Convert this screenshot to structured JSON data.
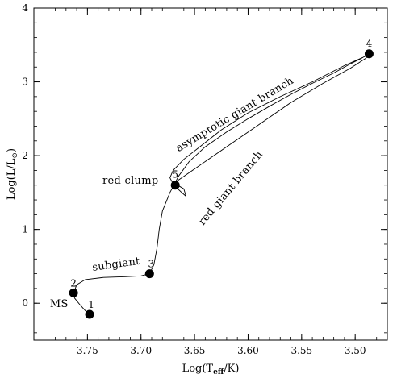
{
  "chart_data": {
    "type": "line",
    "title": "",
    "xlabel": "Log(T_eff/K)",
    "ylabel": "Log(L/L_sun)",
    "xlim": [
      3.8,
      3.47
    ],
    "ylim": [
      -0.5,
      4.0
    ],
    "x_reversed": true,
    "grid": false,
    "legend": "none",
    "xticks": [
      3.75,
      3.7,
      3.65,
      3.6,
      3.55,
      3.5
    ],
    "xtick_labels": [
      "3.75",
      "3.70",
      "3.65",
      "3.60",
      "3.55",
      "3.50"
    ],
    "yticks": [
      0,
      1,
      2,
      3,
      4
    ],
    "ytick_labels": [
      "0",
      "1",
      "2",
      "3",
      "4"
    ],
    "series": [
      {
        "x": [
          3.748,
          3.752,
          3.757,
          3.762,
          3.763,
          3.76,
          3.752,
          3.735,
          3.715,
          3.7,
          3.692,
          3.688,
          3.685,
          3.683,
          3.68,
          3.673,
          3.665,
          3.655,
          3.64,
          3.62,
          3.6,
          3.58,
          3.56,
          3.54,
          3.52,
          3.505,
          3.494,
          3.487,
          3.49,
          3.51,
          3.54,
          3.57,
          3.6,
          3.625,
          3.645,
          3.66,
          3.67,
          3.673,
          3.67,
          3.667,
          3.662,
          3.658,
          3.66,
          3.666,
          3.668,
          3.65,
          3.62,
          3.59,
          3.56,
          3.53,
          3.505,
          3.49,
          3.487
        ],
        "y": [
          -0.15,
          -0.1,
          -0.02,
          0.07,
          0.14,
          0.25,
          0.32,
          0.35,
          0.36,
          0.37,
          0.4,
          0.52,
          0.75,
          1.0,
          1.25,
          1.5,
          1.72,
          1.92,
          2.12,
          2.32,
          2.5,
          2.67,
          2.83,
          2.98,
          3.12,
          3.24,
          3.32,
          3.38,
          3.35,
          3.22,
          3.0,
          2.8,
          2.58,
          2.35,
          2.12,
          1.95,
          1.8,
          1.7,
          1.62,
          1.57,
          1.5,
          1.45,
          1.55,
          1.6,
          1.64,
          1.82,
          2.12,
          2.42,
          2.72,
          2.98,
          3.18,
          3.32,
          3.38
        ]
      }
    ],
    "points": [
      {
        "label": "1",
        "x": 3.748,
        "y": -0.15
      },
      {
        "label": "2",
        "x": 3.763,
        "y": 0.14
      },
      {
        "label": "3",
        "x": 3.692,
        "y": 0.4
      },
      {
        "label": "4",
        "x": 3.487,
        "y": 3.38
      },
      {
        "label": "5",
        "x": 3.668,
        "y": 1.6
      }
    ],
    "annotations": [
      {
        "text": "MS",
        "x": 3.785,
        "y": -0.05,
        "angle": 0
      },
      {
        "text": "subgiant",
        "x": 3.745,
        "y": 0.44,
        "angle": -8
      },
      {
        "text": "red clump",
        "x": 3.736,
        "y": 1.62,
        "angle": 0
      },
      {
        "text": "asymptotic giant branch",
        "x": 3.665,
        "y": 2.05,
        "angle": -31
      },
      {
        "text": "red giant branch",
        "x": 3.642,
        "y": 1.05,
        "angle": -50
      }
    ]
  }
}
